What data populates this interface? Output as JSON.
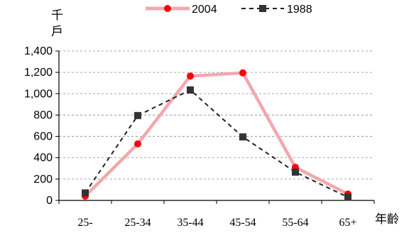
{
  "chart_data": {
    "type": "line",
    "title": "",
    "xlabel": "年齡",
    "ylabel": "千戶",
    "ylabel_chars": [
      "千",
      "戶"
    ],
    "categories": [
      "25-",
      "25-34",
      "35-44",
      "45-54",
      "55-64",
      "65+"
    ],
    "y_ticks": [
      "0",
      "200",
      "400",
      "600",
      "800",
      "1,000",
      "1,200",
      "1,400"
    ],
    "ylim": [
      0,
      1400
    ],
    "grid": true,
    "legend_position": "top",
    "series": [
      {
        "name": "2004",
        "values": [
          40,
          530,
          1165,
          1195,
          310,
          60
        ],
        "line_color": "#f4a6ae",
        "marker_color": "#ff0000",
        "marker": "circle",
        "line_style": "solid"
      },
      {
        "name": "1988",
        "values": [
          70,
          795,
          1035,
          595,
          265,
          30
        ],
        "line_color": "#222222",
        "marker_color": "#333333",
        "marker": "square",
        "line_style": "dashed"
      }
    ]
  }
}
